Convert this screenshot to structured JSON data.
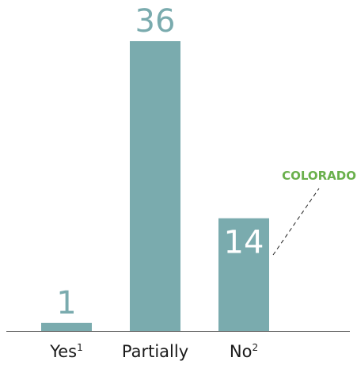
{
  "chart_data": {
    "type": "bar",
    "categories": [
      "Yes",
      "Partially",
      "No"
    ],
    "category_superscripts": [
      "1",
      "",
      "2"
    ],
    "values": [
      1,
      36,
      14
    ],
    "ylim": [
      0,
      36
    ],
    "grid": false,
    "legend": "none",
    "annotation": {
      "label": "COLORADO",
      "category": "No"
    },
    "colors": {
      "bar": "#7aabae",
      "value_text_outside": "#7aabae",
      "value_text_inside": "#ffffff",
      "annotation": "#6ab04c",
      "axis": "#555555"
    }
  }
}
